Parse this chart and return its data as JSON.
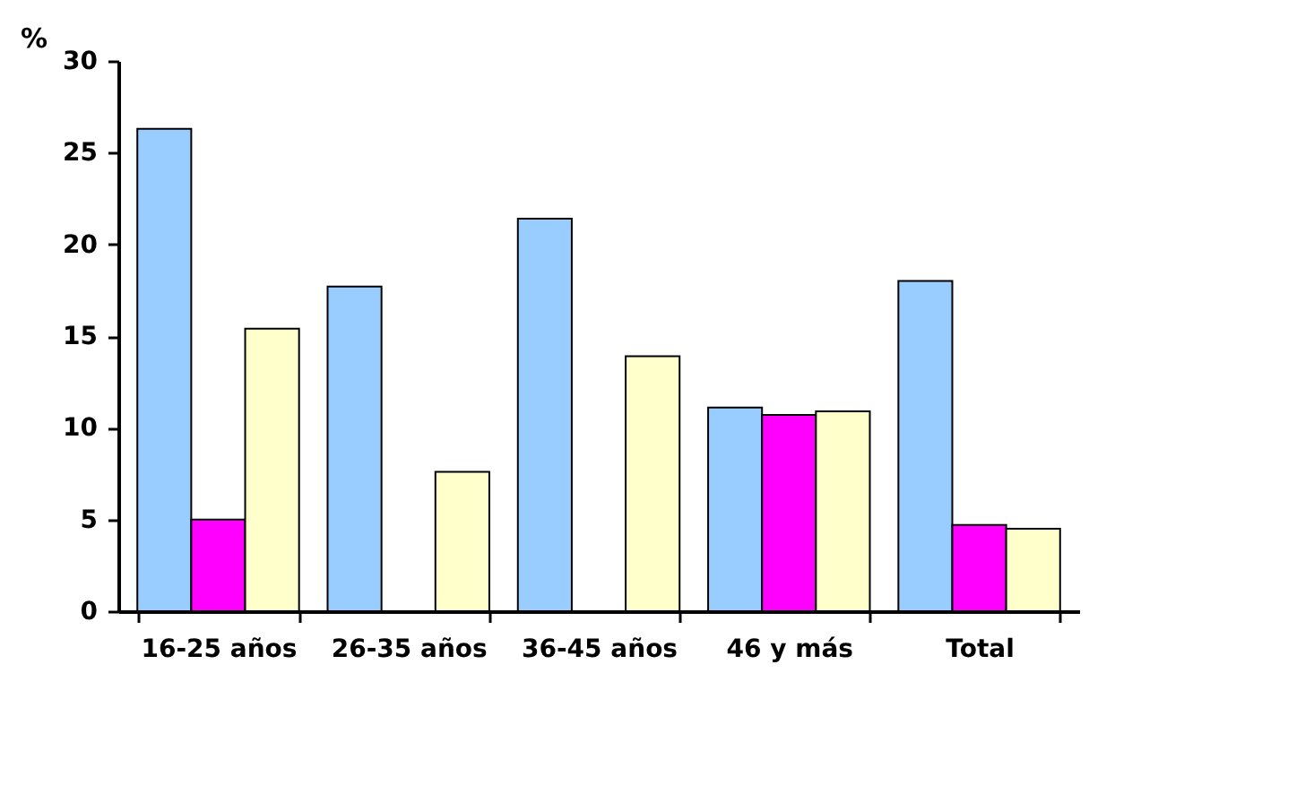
{
  "chart_data": {
    "type": "bar",
    "ylabel": "%",
    "categories": [
      "16-25 años",
      "26-35 años",
      "36-45 años",
      "46 y más",
      "Total"
    ],
    "series": [
      {
        "color": "#99ccff",
        "values": [
          26.3,
          17.7,
          21.4,
          11.1,
          18.0
        ]
      },
      {
        "color": "#ff00ff",
        "values": [
          5.0,
          null,
          null,
          10.7,
          4.7
        ]
      },
      {
        "color": "#ffffcc",
        "values": [
          15.4,
          7.6,
          13.9,
          10.9,
          4.5
        ]
      }
    ],
    "ylim": [
      0,
      30
    ],
    "yticks": [
      0,
      5,
      10,
      15,
      20,
      25,
      30
    ],
    "grid": false,
    "legend": false
  }
}
